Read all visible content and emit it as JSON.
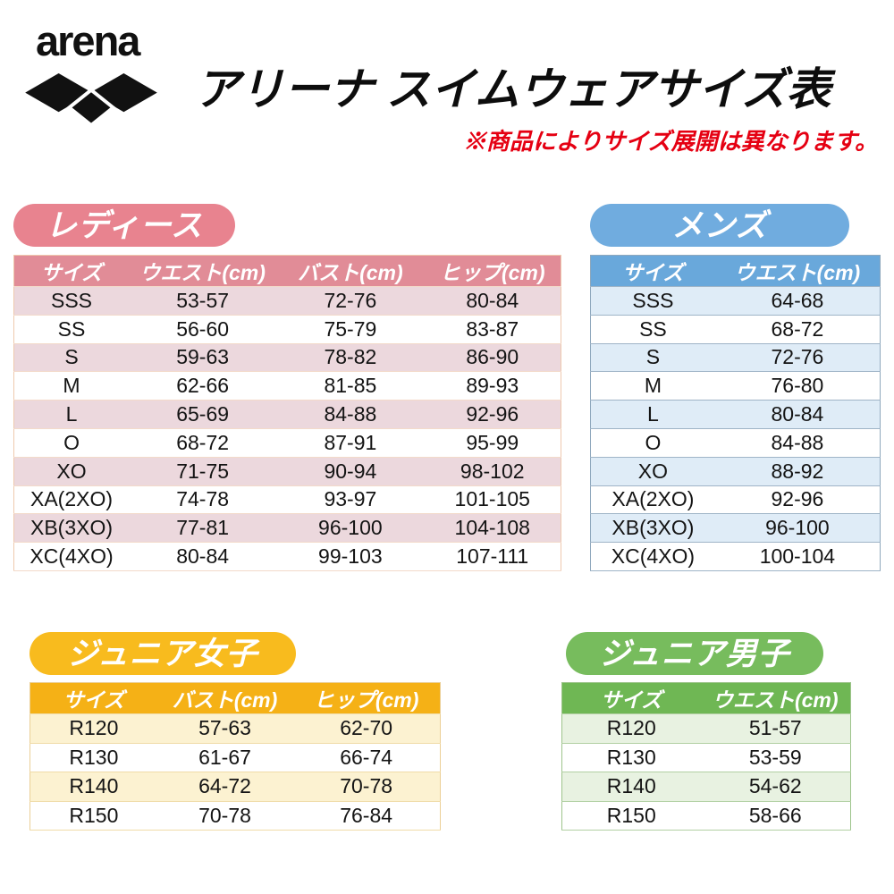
{
  "header": {
    "logo_text": "arena",
    "title": "アリーナ スイムウェアサイズ表",
    "note": "※商品によりサイズ展開は異なります。",
    "note_color": "#E50012",
    "title_color": "#0D0D0D",
    "logo_color": "#111111"
  },
  "chart_data": [
    {
      "type": "table",
      "title": "レディース",
      "columns": [
        "サイズ",
        "ウエスト(cm)",
        "バスト(cm)",
        "ヒップ(cm)"
      ],
      "rows": [
        [
          "SSS",
          "53-57",
          "72-76",
          "80-84"
        ],
        [
          "SS",
          "56-60",
          "75-79",
          "83-87"
        ],
        [
          "S",
          "59-63",
          "78-82",
          "86-90"
        ],
        [
          "M",
          "62-66",
          "81-85",
          "89-93"
        ],
        [
          "L",
          "65-69",
          "84-88",
          "92-96"
        ],
        [
          "O",
          "68-72",
          "87-91",
          "95-99"
        ],
        [
          "XO",
          "71-75",
          "90-94",
          "98-102"
        ],
        [
          "XA(2XO)",
          "74-78",
          "93-97",
          "101-105"
        ],
        [
          "XB(3XO)",
          "77-81",
          "96-100",
          "104-108"
        ],
        [
          "XC(4XO)",
          "80-84",
          "99-103",
          "107-111"
        ]
      ],
      "colors": {
        "pill": "#E8838F",
        "header": "#E18C97",
        "alt_row": "#ECD8DD",
        "border": "#EFC9AE",
        "divider": "#F3DACA"
      }
    },
    {
      "type": "table",
      "title": "メンズ",
      "columns": [
        "サイズ",
        "ウエスト(cm)"
      ],
      "rows": [
        [
          "SSS",
          "64-68"
        ],
        [
          "SS",
          "68-72"
        ],
        [
          "S",
          "72-76"
        ],
        [
          "M",
          "76-80"
        ],
        [
          "L",
          "80-84"
        ],
        [
          "O",
          "84-88"
        ],
        [
          "XO",
          "88-92"
        ],
        [
          "XA(2XO)",
          "92-96"
        ],
        [
          "XB(3XO)",
          "96-100"
        ],
        [
          "XC(4XO)",
          "100-104"
        ]
      ],
      "colors": {
        "pill": "#70ACDF",
        "header": "#69A8DB",
        "alt_row": "#DFECF7",
        "border": "#8FA8BD",
        "divider": "#9FB4C7"
      }
    },
    {
      "type": "table",
      "title": "ジュニア女子",
      "columns": [
        "サイズ",
        "バスト(cm)",
        "ヒップ(cm)"
      ],
      "rows": [
        [
          "R120",
          "57-63",
          "62-70"
        ],
        [
          "R130",
          "61-67",
          "66-74"
        ],
        [
          "R140",
          "64-72",
          "70-78"
        ],
        [
          "R150",
          "70-78",
          "76-84"
        ]
      ],
      "colors": {
        "pill": "#F8BB1E",
        "header": "#F5B116",
        "alt_row": "#FCF2D1",
        "border": "#EBCF96",
        "divider": "#F0DCA8"
      }
    },
    {
      "type": "table",
      "title": "ジュニア男子",
      "columns": [
        "サイズ",
        "ウエスト(cm)"
      ],
      "rows": [
        [
          "R120",
          "51-57"
        ],
        [
          "R130",
          "53-59"
        ],
        [
          "R140",
          "54-62"
        ],
        [
          "R150",
          "58-66"
        ]
      ],
      "colors": {
        "pill": "#77BC5D",
        "header": "#6FB754",
        "alt_row": "#E8F2E1",
        "border": "#9DC48B",
        "divider": "#B2D0A3"
      }
    }
  ]
}
